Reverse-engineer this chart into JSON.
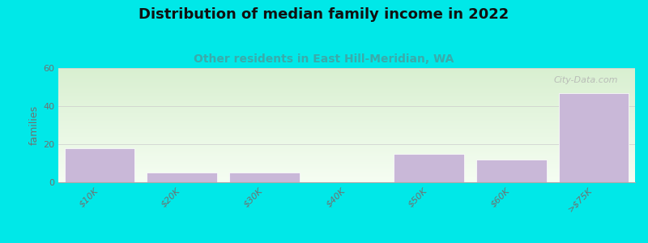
{
  "title": "Distribution of median family income in 2022",
  "subtitle": "Other residents in East Hill-Meridian, WA",
  "categories": [
    "$10K",
    "$20K",
    "$30K",
    "$40K",
    "$50K",
    "$60K",
    ">$75K"
  ],
  "values": [
    18,
    5,
    5,
    0,
    15,
    12,
    47
  ],
  "bar_color": "#c9b8d8",
  "bar_edge_color": "#ffffff",
  "background_color": "#00e8e8",
  "plot_bg_gradient_top": "#d8efd0",
  "plot_bg_gradient_bottom": "#f5fdf2",
  "ylabel": "families",
  "ylim": [
    0,
    60
  ],
  "yticks": [
    0,
    20,
    40,
    60
  ],
  "title_fontsize": 13,
  "subtitle_fontsize": 10,
  "subtitle_color": "#3aabab",
  "watermark": "City-Data.com",
  "tick_label_color": "#707070",
  "tick_label_fontsize": 8,
  "ylabel_fontsize": 9
}
